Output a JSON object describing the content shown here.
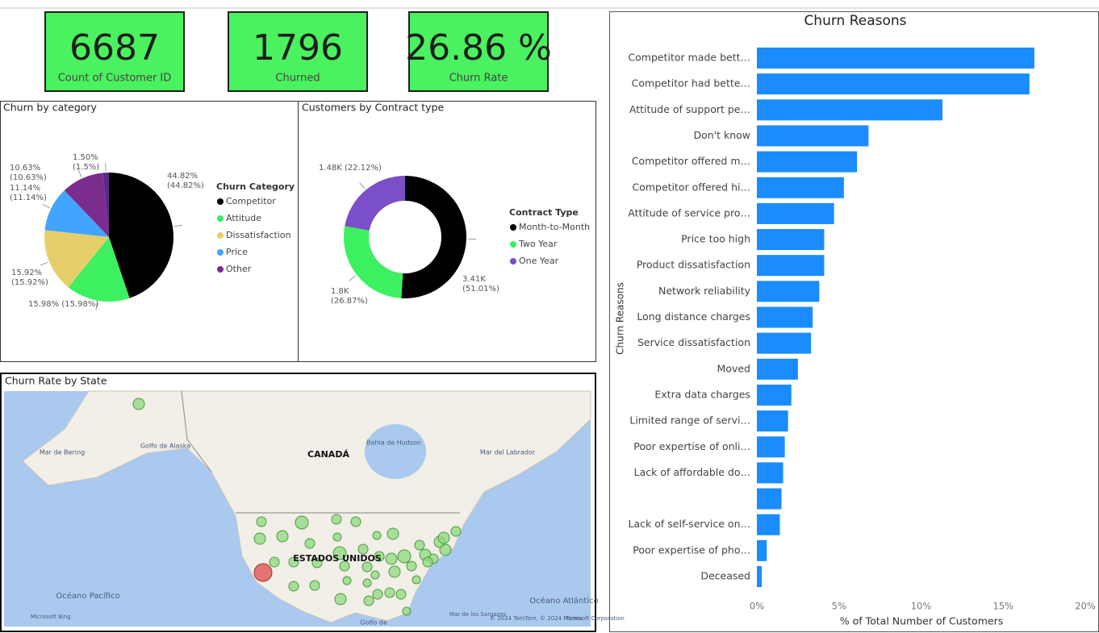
{
  "kpis": [
    {
      "value": 6687,
      "label": "Count of Customer ID"
    },
    {
      "value": 1796,
      "label": "Churned"
    },
    {
      "value": 26.86,
      "value_label": "26.86 %",
      "label": "Churn Rate"
    }
  ],
  "chart_data": [
    {
      "type": "pie",
      "title": "Churn by category",
      "legend_title": "Churn Category",
      "categories": [
        "Competitor",
        "Attitude",
        "Dissatisfaction",
        "Price",
        "Other",
        null
      ],
      "values": [
        44.82,
        15.98,
        15.92,
        11.14,
        10.63,
        1.5
      ],
      "value_labels": [
        "44.82% (44.82%)",
        "15.98% (15.98%)",
        "15.92% (15.92%)",
        "11.14% (11.14%)",
        "10.63% (10.63%)",
        "1.50% (1.5%)"
      ],
      "colors": [
        "#000000",
        "#3cf060",
        "#e6cf6a",
        "#42a5ff",
        "#7b2d8e",
        "#5b2a86"
      ]
    },
    {
      "type": "donut",
      "title": "Customers by Contract type",
      "legend_title": "Contract Type",
      "categories": [
        "Month-to-Month",
        "Two Year",
        "One Year"
      ],
      "values": [
        3410,
        1800,
        1480
      ],
      "value_labels": [
        "3.41K (51.01%)",
        "1.8K (26.87%)",
        "1.48K (22.12%)"
      ],
      "colors": [
        "#000000",
        "#3cf060",
        "#7b4fc8"
      ]
    },
    {
      "type": "map",
      "title": "Churn Rate by State",
      "labels": [
        "Mar de Bering",
        "Golfo de Alaska",
        "CANADÁ",
        "Bahía de Hudson",
        "Mar del Labrador",
        "ESTADOS UNIDOS",
        "Océano Pacífico",
        "Océano Atlántico",
        "Mar de los Sargazos",
        "Golfo de",
        "© 2024 TomTom, © 2024 Microsoft Corporation",
        "Terms",
        "Microsoft Bing"
      ]
    },
    {
      "type": "bar",
      "orientation": "horizontal",
      "title": "Churn Reasons",
      "y_label": "Churn Reasons",
      "x_label": "% of Total Number of Customers",
      "categories": [
        "Competitor made bett…",
        "Competitor had bette…",
        "Attitude of support pe…",
        "Don't know",
        "Competitor offered m…",
        "Competitor offered hi…",
        "Attitude of service pro…",
        "Price too high",
        "Product dissatisfaction",
        "Network reliability",
        "Long distance charges",
        "Service dissatisfaction",
        "Moved",
        "Extra data charges",
        "Limited range of servi…",
        "Poor expertise of onli…",
        "Lack of affordable do…",
        null,
        "Lack of self-service on…",
        "Poor expertise of pho…",
        "Deceased"
      ],
      "values": [
        16.9,
        16.6,
        11.3,
        6.8,
        6.1,
        5.3,
        4.7,
        4.1,
        4.1,
        3.8,
        3.4,
        3.3,
        2.5,
        2.1,
        1.9,
        1.7,
        1.6,
        1.5,
        1.4,
        0.6,
        0.3
      ],
      "color": "#1a8cff",
      "xlim": [
        0,
        20
      ],
      "xticks": [
        {
          "value": 0,
          "label": "0%"
        },
        {
          "value": 5,
          "label": "5%"
        },
        {
          "value": 10,
          "label": "10%"
        },
        {
          "value": 15,
          "label": "15%"
        },
        {
          "value": 20,
          "label": "20%"
        }
      ],
      "grid": false
    }
  ]
}
